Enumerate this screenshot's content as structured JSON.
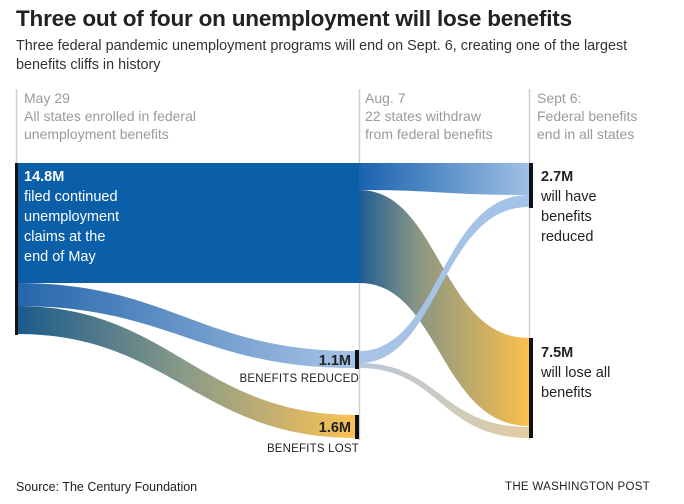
{
  "title": "Three out of four on unemployment will lose benefits",
  "subtitle": "Three federal pandemic unemployment programs will end on Sept. 6, creating one of the largest benefits cliffs in history",
  "chart_data": {
    "type": "sankey",
    "unit": "million people",
    "stages": [
      {
        "label": "May 29",
        "description": [
          "All states enrolled in federal",
          "unemployment benefits"
        ]
      },
      {
        "label": "Aug. 7",
        "description": [
          "22 states withdraw",
          "from federal benefits"
        ]
      },
      {
        "label": "Sept 6:",
        "description": [
          "Federal benefits",
          "end in all states"
        ]
      }
    ],
    "nodes": [
      {
        "id": "may",
        "value_label": "14.8M",
        "label": [
          "filed continued",
          "unemployment",
          "claims at the",
          "end of May"
        ],
        "value": 14.8
      },
      {
        "id": "aug_reduced",
        "value_label": "1.1M",
        "label": [
          "BENEFITS REDUCED"
        ],
        "value": 1.1
      },
      {
        "id": "aug_lost",
        "value_label": "1.6M",
        "label": [
          "BENEFITS LOST"
        ],
        "value": 1.6
      },
      {
        "id": "sep_reduced",
        "value_label": "2.7M",
        "label": [
          "will have",
          "benefits",
          "reduced"
        ],
        "value": 2.7
      },
      {
        "id": "sep_lost",
        "value_label": "7.5M",
        "label": [
          "will lose all",
          "benefits"
        ],
        "value": 7.5
      }
    ],
    "links": [
      {
        "source": "may",
        "target": "aug_continuing",
        "value": 8.5
      },
      {
        "source": "may",
        "target": "aug_reduced",
        "value": 1.1
      },
      {
        "source": "may",
        "target": "aug_lost",
        "value": 1.6
      },
      {
        "source": "aug_continuing",
        "target": "sep_reduced",
        "value": 1.8
      },
      {
        "source": "aug_continuing",
        "target": "sep_lost",
        "value": 6.7
      },
      {
        "source": "aug_reduced",
        "target": "sep_reduced",
        "value": 0.9
      },
      {
        "source": "aug_reduced",
        "target": "sep_lost",
        "value": 0.3
      }
    ]
  },
  "colors": {
    "main_blue": "#0b5ea8",
    "reduced_light_blue": "#a8c4e4",
    "lost_yellow": "#f9c256",
    "lost_tan": "#d8cda6",
    "stage_line": "#cfcfcf"
  },
  "footer": {
    "source": "Source: The Century Foundation",
    "brand": "THE WASHINGTON POST"
  }
}
